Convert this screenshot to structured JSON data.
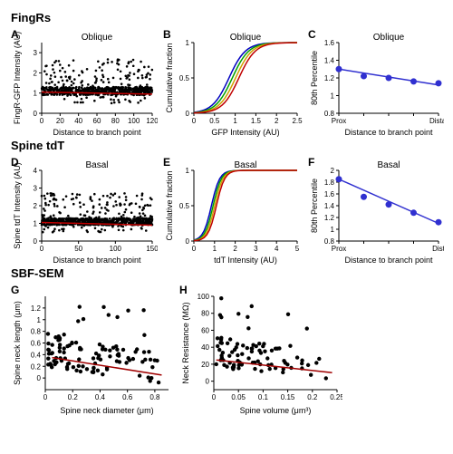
{
  "sections": {
    "fingrs": "FingRs",
    "spine": "Spine tdT",
    "sbf": "SBF-SEM"
  },
  "panels": {
    "A": {
      "title": "Oblique",
      "xlabel": "Distance to branch point",
      "ylabel": "FingR-GFP Intensity (AU)",
      "xlim": [
        0,
        120
      ],
      "ylim": [
        0,
        3.5
      ],
      "xticks": [
        0,
        20,
        40,
        60,
        80,
        100,
        120
      ],
      "yticks": [
        0,
        1,
        2,
        3
      ],
      "fit_color": "#c00000",
      "fit": [
        [
          0,
          1.05
        ],
        [
          120,
          0.95
        ]
      ],
      "n": 700,
      "seed": 1
    },
    "B": {
      "title": "Oblique",
      "xlabel": "GFP Intensity (AU)",
      "ylabel": "Cumulative fraction",
      "xlim": [
        0,
        2.5
      ],
      "ylim": [
        0,
        1
      ],
      "xticks": [
        0.0,
        0.5,
        1.0,
        1.5,
        2.0,
        2.5
      ],
      "colors": [
        "#0000c0",
        "#00a000",
        "#d0a000",
        "#c00000"
      ]
    },
    "C": {
      "title": "Oblique",
      "xlabel": "Distance to branch point",
      "ylabel": "80th Percentile",
      "ylim": [
        0.8,
        1.6
      ],
      "xticks_labels": [
        "Prox",
        "",
        "",
        "",
        "Distal"
      ],
      "color": "#3030d0",
      "points": [
        1.3,
        1.22,
        1.2,
        1.16,
        1.14
      ],
      "fit": [
        [
          0,
          1.3
        ],
        [
          4,
          1.12
        ]
      ]
    },
    "D": {
      "title": "Basal",
      "xlabel": "Distance to branch point",
      "ylabel": "Spine tdT Intensity (AU)",
      "xlim": [
        0,
        150
      ],
      "ylim": [
        0,
        4
      ],
      "xticks": [
        0,
        50,
        100,
        150
      ],
      "yticks": [
        0,
        1,
        2,
        3,
        4
      ],
      "fit_color": "#c00000",
      "fit": [
        [
          0,
          1.05
        ],
        [
          150,
          0.9
        ]
      ],
      "n": 800,
      "seed": 2
    },
    "E": {
      "title": "Basal",
      "xlabel": "tdT Intensity (AU)",
      "ylabel": "Cumulative fraction",
      "xlim": [
        0,
        5
      ],
      "ylim": [
        0,
        1
      ],
      "xticks": [
        0,
        1,
        2,
        3,
        4,
        5
      ],
      "colors": [
        "#0000c0",
        "#00a000",
        "#d0a000",
        "#c00000"
      ]
    },
    "F": {
      "title": "Basal",
      "xlabel": "Distance to branch point",
      "ylabel": "80th Percentile",
      "ylim": [
        0.8,
        2.0
      ],
      "xticks_labels": [
        "Prox",
        "",
        "",
        "",
        "Dist"
      ],
      "color": "#3030d0",
      "points": [
        1.85,
        1.55,
        1.42,
        1.28,
        1.12
      ],
      "fit": [
        [
          0,
          1.85
        ],
        [
          4,
          1.1
        ]
      ]
    },
    "G": {
      "title": "",
      "xlabel": "Spine neck diameter (μm)",
      "ylabel": "Spine neck length (μm)",
      "xlim": [
        0,
        0.9
      ],
      "ylim": [
        -0.2,
        1.4
      ],
      "xticks": [
        0.0,
        0.2,
        0.4,
        0.6,
        0.8
      ],
      "yticks": [
        0.0,
        0.2,
        0.4,
        0.6,
        0.8,
        1.0,
        1.2
      ],
      "fit_color": "#a00000",
      "fit": [
        [
          0.05,
          0.35
        ],
        [
          0.85,
          0.05
        ]
      ],
      "n": 110,
      "seed": 3
    },
    "H": {
      "title": "",
      "xlabel": "Spine volume (μm³)",
      "ylabel": "Neck Resistance (MΩ)",
      "xlim": [
        0,
        0.25
      ],
      "ylim": [
        -10,
        100
      ],
      "xticks": [
        0.0,
        0.05,
        0.1,
        0.15,
        0.2,
        0.25
      ],
      "yticks": [
        0,
        20,
        40,
        60,
        80,
        100
      ],
      "fit_color": "#a00000",
      "fit": [
        [
          0.005,
          25
        ],
        [
          0.24,
          10
        ]
      ],
      "n": 90,
      "seed": 4
    }
  },
  "style": {
    "axis_color": "#000",
    "tick_font": 8,
    "label_font": 9,
    "title_font": 10,
    "dot_color": "#000",
    "dot_r": 1.6,
    "dot_r_small": 1.3,
    "dot_r_big": 3.5
  }
}
